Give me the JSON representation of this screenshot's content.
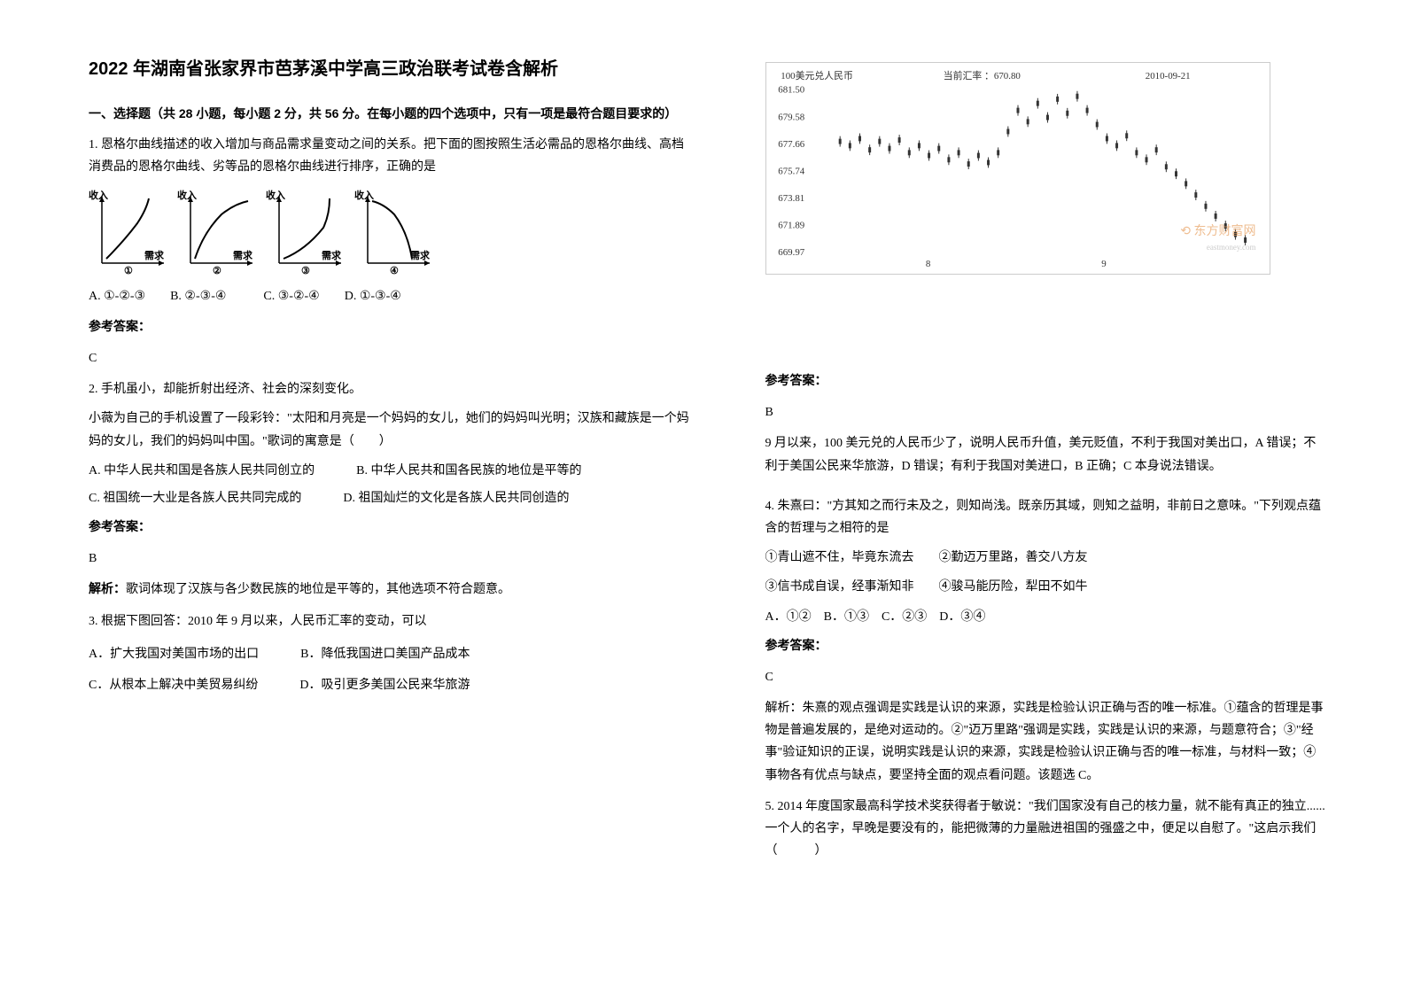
{
  "title": "2022 年湖南省张家界市芭茅溪中学高三政治联考试卷含解析",
  "section1": "一、选择题（共 28 小题，每小题 2 分，共 56 分。在每小题的四个选项中，只有一项是最符合题目要求的）",
  "q1": {
    "text": "1. 恩格尔曲线描述的收入增加与商品需求量变动之间的关系。把下面的图按照生活必需品的恩格尔曲线、高档消费品的恩格尔曲线、劣等品的恩格尔曲线进行排序，正确的是",
    "ylabel": "收入",
    "xlabel": "需求",
    "nums": [
      "①",
      "②",
      "③",
      "④"
    ],
    "options": "A. ①-②-③　　B. ②-③-④　　　C. ③-②-④　　D. ①-③-④",
    "answer_label": "参考答案：",
    "answer": "C"
  },
  "q2": {
    "text": "2. 手机虽小，却能折射出经济、社会的深刻变化。",
    "text2": "小薇为自己的手机设置了一段彩铃：\"太阳和月亮是一个妈妈的女儿，她们的妈妈叫光明；汉族和藏族是一个妈妈的女儿，我们的妈妈叫中国。\"歌词的寓意是（　　）",
    "optA": "A. 中华人民共和国是各族人民共同创立的",
    "optB": "B. 中华人民共和国各民族的地位是平等的",
    "optC": "C. 祖国统一大业是各族人民共同完成的",
    "optD": "D. 祖国灿烂的文化是各族人民共同创造的",
    "answer_label": "参考答案：",
    "answer": "B",
    "explain_label": "解析：",
    "explain": "歌词体现了汉族与各少数民族的地位是平等的，其他选项不符合题意。"
  },
  "q3": {
    "text": "3. 根据下图回答：2010 年 9 月以来，人民币汇率的变动，可以",
    "optA": "A．扩大我国对美国市场的出口",
    "optB": "B．降低我国进口美国产品成本",
    "optC": "C．从根本上解决中美贸易纠纷",
    "optD": "D．吸引更多美国公民来华旅游",
    "chart": {
      "title_left": "100美元兑人民币",
      "title_mid": "当前汇率 ：670.80",
      "title_right": "2010-09-21",
      "yvalues": [
        "681.50",
        "679.58",
        "677.66",
        "675.74",
        "673.81",
        "671.89",
        "669.97"
      ],
      "xvalues": [
        "8",
        "9"
      ],
      "watermark": "东方财富网",
      "watermark_sub": "eastmoney.com",
      "line_color": "#333333",
      "grid_color": "#e0e0e0",
      "data_points": [
        [
          10,
          677.8
        ],
        [
          15,
          677.5
        ],
        [
          20,
          678.0
        ],
        [
          25,
          677.2
        ],
        [
          30,
          677.8
        ],
        [
          35,
          677.3
        ],
        [
          40,
          677.9
        ],
        [
          45,
          677.0
        ],
        [
          50,
          677.5
        ],
        [
          55,
          676.8
        ],
        [
          60,
          677.3
        ],
        [
          65,
          676.5
        ],
        [
          70,
          677.0
        ],
        [
          75,
          676.2
        ],
        [
          80,
          676.8
        ],
        [
          85,
          676.3
        ],
        [
          90,
          677.0
        ],
        [
          95,
          678.5
        ],
        [
          100,
          680.0
        ],
        [
          105,
          679.2
        ],
        [
          110,
          680.5
        ],
        [
          115,
          679.5
        ],
        [
          120,
          680.8
        ],
        [
          125,
          679.8
        ],
        [
          130,
          681.0
        ],
        [
          135,
          680.0
        ],
        [
          140,
          679.0
        ],
        [
          145,
          678.0
        ],
        [
          150,
          677.5
        ],
        [
          155,
          678.2
        ],
        [
          160,
          677.0
        ],
        [
          165,
          676.5
        ],
        [
          170,
          677.2
        ],
        [
          175,
          676.0
        ],
        [
          180,
          675.5
        ],
        [
          185,
          674.8
        ],
        [
          190,
          674.0
        ],
        [
          195,
          673.2
        ],
        [
          200,
          672.5
        ],
        [
          205,
          671.8
        ],
        [
          210,
          671.2
        ],
        [
          215,
          670.8
        ]
      ]
    },
    "answer_label": "参考答案：",
    "answer": "B",
    "explain": "9 月以来，100 美元兑的人民币少了，说明人民币升值，美元贬值，不利于我国对美出口，A 错误；不利于美国公民来华旅游，D 错误；有利于我国对美进口，B 正确；C 本身说法错误。"
  },
  "q4": {
    "text": "4. 朱熹曰：\"方其知之而行未及之，则知尚浅。既亲历其域，则知之益明，非前日之意味。\"下列观点蕴含的哲理与之相符的是",
    "line1": "①青山遮不住，毕竟东流去　　②勤迈万里路，善交八方友",
    "line2": "③信书成自误，经事渐知非　　④骏马能历险，犁田不如牛",
    "options": "A．①②　B．①③　C．②③　D．③④",
    "answer_label": "参考答案：",
    "answer": "C",
    "explain": "解析：朱熹的观点强调是实践是认识的来源，实践是检验认识正确与否的唯一标准。①蕴含的哲理是事物是普遍发展的，是绝对运动的。②\"迈万里路\"强调是实践，实践是认识的来源，与题意符合；③\"经事\"验证知识的正误，说明实践是认识的来源，实践是检验认识正确与否的唯一标准，与材料一致；④事物各有优点与缺点，要坚持全面的观点看问题。该题选 C。"
  },
  "q5": {
    "text": "5. 2014 年度国家最高科学技术奖获得者于敏说：\"我们国家没有自己的核力量，就不能有真正的独立......一个人的名字，早晚是要没有的，能把微薄的力量融进祖国的强盛之中，便足以自慰了。\"这启示我们（　　　）"
  }
}
